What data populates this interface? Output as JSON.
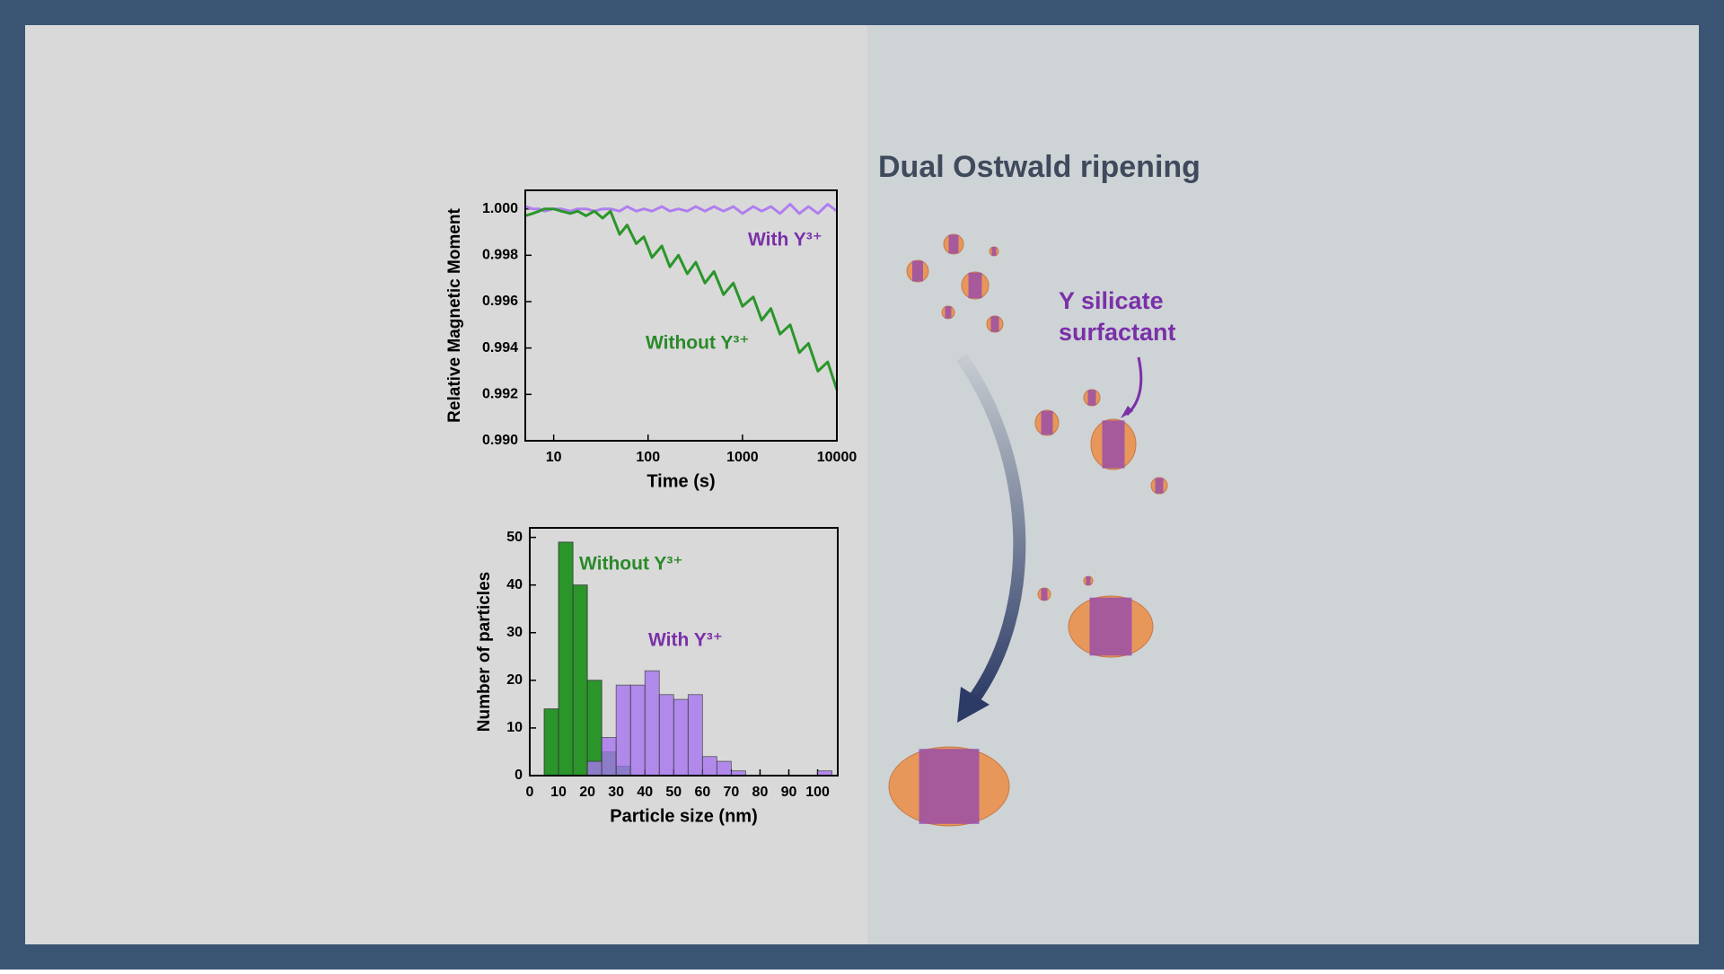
{
  "chart_data": [
    {
      "type": "line",
      "xlabel": "Time (s)",
      "ylabel": "Relative Magnetic Moment",
      "xscale": "log",
      "xlim": [
        5,
        10000
      ],
      "xticks": [
        10,
        100,
        1000,
        10000
      ],
      "ylim": [
        0.99,
        1.0008
      ],
      "yticks": [
        {
          "value": 0.99,
          "label": "0.990"
        },
        0.992,
        0.994,
        0.996,
        0.998,
        {
          "value": 1,
          "label": "1.000"
        }
      ],
      "x": [
        5,
        6,
        7,
        8,
        10,
        12,
        15,
        18,
        22,
        27,
        33,
        40,
        50,
        60,
        75,
        90,
        110,
        140,
        170,
        210,
        260,
        320,
        400,
        500,
        630,
        800,
        1000,
        1300,
        1600,
        2000,
        2500,
        3200,
        4000,
        5000,
        6300,
        8000,
        10000
      ],
      "series": [
        {
          "name": "With Y³⁺",
          "color": "#b07ef0",
          "values": [
            1.0001,
            1.0,
            1.0,
            0.9999,
            1.0,
            1.0,
            0.9999,
            1.0,
            1.0,
            0.9999,
            1.0,
            1.0,
            0.9999,
            1.0001,
            0.9999,
            1.0,
            0.9999,
            1.0001,
            0.9999,
            1.0,
            0.9999,
            1.0001,
            0.9999,
            1.0001,
            0.9999,
            1.0001,
            0.9998,
            1.0001,
            0.9999,
            1.0001,
            0.9998,
            1.0002,
            0.9998,
            1.0001,
            0.9998,
            1.0002,
            0.9999
          ]
        },
        {
          "name": "Without Y³⁺",
          "color": "#2a962a",
          "values": [
            0.9997,
            0.9998,
            0.9999,
            1.0,
            1.0,
            0.9999,
            0.9998,
            0.9999,
            0.9997,
            0.9999,
            0.9996,
            0.9999,
            0.9989,
            0.9993,
            0.9985,
            0.9988,
            0.9979,
            0.9984,
            0.9975,
            0.998,
            0.9972,
            0.9977,
            0.9968,
            0.9973,
            0.9963,
            0.9968,
            0.9958,
            0.9962,
            0.9952,
            0.9957,
            0.9946,
            0.995,
            0.9938,
            0.9942,
            0.993,
            0.9934,
            0.9922
          ]
        }
      ]
    },
    {
      "type": "histogram",
      "xlabel": "Particle size (nm)",
      "ylabel": "Number of particles",
      "xlim": [
        0,
        107
      ],
      "xticks": [
        0,
        10,
        20,
        30,
        40,
        50,
        60,
        70,
        80,
        90,
        100
      ],
      "ylim": [
        0,
        52
      ],
      "yticks": [
        0,
        10,
        20,
        30,
        40,
        50
      ],
      "bins": [
        0,
        5,
        10,
        15,
        20,
        25,
        30,
        35,
        40,
        45,
        50,
        55,
        60,
        65,
        70,
        75,
        80,
        85,
        90,
        95,
        100,
        105
      ],
      "series": [
        {
          "name": "Without Y³⁺",
          "color": "#2a962a",
          "values": [
            0,
            14,
            49,
            40,
            20,
            5,
            2,
            0,
            0,
            0,
            0,
            0,
            0,
            0,
            0,
            0,
            0,
            0,
            0,
            0,
            0
          ]
        },
        {
          "name": "With Y³⁺",
          "color": "#a676f0",
          "values": [
            0,
            0,
            0,
            0,
            3,
            8,
            19,
            19,
            22,
            17,
            16,
            17,
            4,
            3,
            1,
            0,
            0,
            0,
            0,
            0,
            1
          ]
        }
      ]
    }
  ],
  "diagram": {
    "title": "Dual Ostwald ripening",
    "label": [
      "Y silicate",
      "surfactant"
    ]
  }
}
